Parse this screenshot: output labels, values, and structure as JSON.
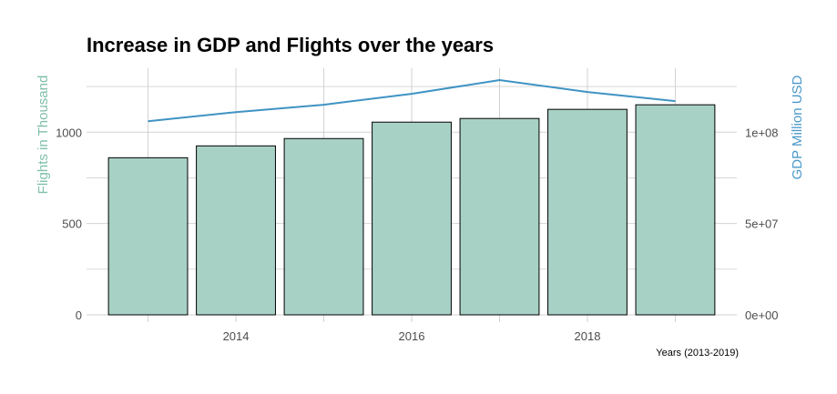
{
  "chart_data": {
    "type": "bar",
    "title": "Increase in GDP and Flights over the years",
    "xlabel": "Years (2013-2019)",
    "ylabel": "Flights in Thousand",
    "y2label": "GDP Million USD",
    "x": [
      2013,
      2014,
      2015,
      2016,
      2017,
      2018,
      2019
    ],
    "x_ticks": [
      "2014",
      "2016",
      "2018"
    ],
    "x_tick_values": [
      2014,
      2016,
      2018
    ],
    "xlim": [
      2012.3,
      2019.7
    ],
    "ylim": [
      0,
      1350
    ],
    "y_ticks": [
      "0",
      "500",
      "1000"
    ],
    "y_tick_values": [
      0,
      500,
      1000
    ],
    "y2lim": [
      0,
      135000000
    ],
    "y2_ticks": [
      "0e+00",
      "5e+07",
      "1e+08"
    ],
    "y2_tick_values": [
      0,
      50000000,
      100000000
    ],
    "grid": true,
    "series": [
      {
        "type": "bar",
        "axis": "left",
        "values": [
          860,
          925,
          965,
          1055,
          1075,
          1125,
          1150
        ],
        "color": "#a8d1c6"
      },
      {
        "type": "line",
        "axis": "right",
        "values": [
          106000000,
          111000000,
          115000000,
          121000000,
          128500000,
          122000000,
          117000000
        ],
        "color": "#3f93c4"
      }
    ],
    "colors": {
      "bar_fill": "#a8d1c6",
      "bar_stroke": "#000000",
      "line": "#3f93c4",
      "left_label": "#7fbfa9",
      "right_label": "#4a98c9",
      "grid": "#d2d2d2"
    }
  }
}
